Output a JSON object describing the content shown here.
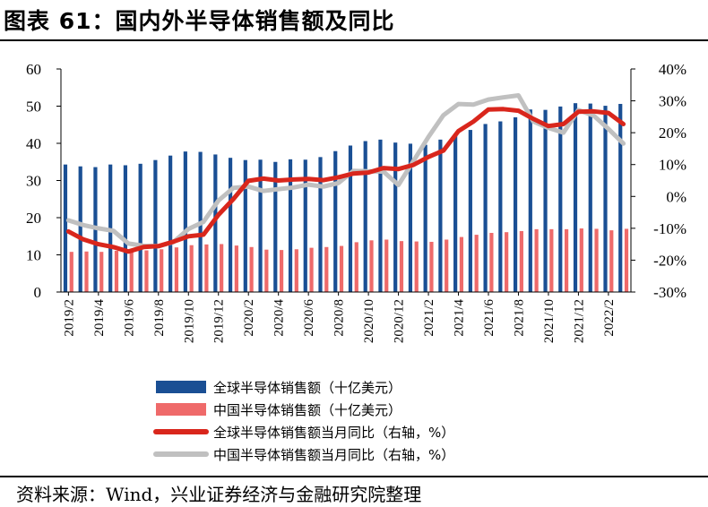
{
  "header": {
    "title": "图表 61：国内外半导体销售额及同比"
  },
  "footer": {
    "source": "资料来源：Wind，兴业证券经济与金融研究院整理"
  },
  "colors": {
    "global_bar": "#1a4f94",
    "china_bar": "#ef6a6a",
    "global_line": "#d9261c",
    "china_line": "#c0c0c0"
  },
  "chart_data": {
    "type": "bar",
    "categories": [
      "2019/2",
      "2019/3",
      "2019/4",
      "2019/5",
      "2019/6",
      "2019/7",
      "2019/8",
      "2019/9",
      "2019/10",
      "2019/11",
      "2019/12",
      "2020/1",
      "2020/2",
      "2020/3",
      "2020/4",
      "2020/5",
      "2020/6",
      "2020/7",
      "2020/8",
      "2020/9",
      "2020/10",
      "2020/11",
      "2020/12",
      "2021/1",
      "2021/2",
      "2021/3",
      "2021/4",
      "2021/5",
      "2021/6",
      "2021/7",
      "2021/8",
      "2021/9",
      "2021/10",
      "2021/11",
      "2021/12",
      "2022/1",
      "2022/2",
      "2022/3"
    ],
    "x_tick_labels": [
      "2019/2",
      "2019/4",
      "2019/6",
      "2019/8",
      "2019/10",
      "2019/12",
      "2020/2",
      "2020/4",
      "2020/6",
      "2020/8",
      "2020/10",
      "2020/12",
      "2021/2",
      "2021/4",
      "2021/6",
      "2021/8",
      "2021/10",
      "2021/12",
      "2022/2"
    ],
    "y_left": {
      "lim": [
        0,
        60
      ],
      "ticks": [
        "0",
        "10",
        "20",
        "30",
        "40",
        "50",
        "60"
      ]
    },
    "y_right": {
      "lim": [
        -30,
        40
      ],
      "ticks": [
        "-30%",
        "-20%",
        "-10%",
        "0%",
        "10%",
        "20%",
        "30%",
        "40%"
      ]
    },
    "series": [
      {
        "name": "全球半导体销售额（十亿美元）",
        "kind": "bar",
        "axis": "left",
        "values": [
          34.3,
          33.8,
          33.6,
          34.3,
          34.1,
          34.5,
          35.5,
          36.7,
          37.8,
          37.7,
          37.0,
          36.1,
          35.5,
          35.6,
          35.0,
          35.7,
          35.6,
          36.3,
          37.9,
          39.4,
          40.6,
          41.0,
          40.2,
          39.9,
          39.6,
          41.0,
          42.6,
          43.6,
          45.2,
          45.9,
          47.0,
          49.1,
          49.0,
          49.9,
          50.8,
          50.7,
          50.1,
          50.6
        ]
      },
      {
        "name": "中国半导体销售额（十亿美元）",
        "kind": "bar",
        "axis": "left",
        "values": [
          10.8,
          10.9,
          10.8,
          11.1,
          11.0,
          11.2,
          11.5,
          12.0,
          12.6,
          12.8,
          12.9,
          12.5,
          12.1,
          11.4,
          11.3,
          11.5,
          11.9,
          12.1,
          12.4,
          13.4,
          13.9,
          14.1,
          13.7,
          13.6,
          13.5,
          14.1,
          14.8,
          15.4,
          15.9,
          16.1,
          16.4,
          16.9,
          16.9,
          16.9,
          17.1,
          17.0,
          16.6,
          17.0
        ]
      },
      {
        "name": "全球半导体销售额当月同比（右轴，%）",
        "kind": "line",
        "axis": "right",
        "values": [
          -11,
          -13.5,
          -15,
          -15.9,
          -17.3,
          -15.9,
          -15.6,
          -14.2,
          -12.5,
          -12,
          -5.8,
          -0.8,
          4.9,
          5.6,
          5,
          5.3,
          5.5,
          5.1,
          6,
          7.2,
          7.5,
          8.9,
          8.6,
          9.9,
          12.4,
          14.4,
          20.5,
          23.5,
          27.3,
          27.4,
          26.9,
          24.3,
          22.1,
          22.7,
          26.6,
          26.7,
          26.2,
          22.7
        ]
      },
      {
        "name": "中国半导体销售额当月同比（右轴，%）",
        "kind": "line",
        "axis": "right",
        "values": [
          -7.5,
          -9,
          -10,
          -10.8,
          -14.8,
          -15.5,
          -15.6,
          -14.3,
          -10.2,
          -8,
          -1.3,
          2.7,
          3.1,
          1.7,
          2.3,
          2.8,
          3.7,
          3.1,
          4.2,
          8,
          7.9,
          7.8,
          3.6,
          11.1,
          18.7,
          25.5,
          29,
          28.8,
          30.4,
          31.1,
          31.7,
          23.5,
          21.5,
          20,
          27.1,
          25.4,
          21.2,
          16.6
        ]
      }
    ]
  }
}
